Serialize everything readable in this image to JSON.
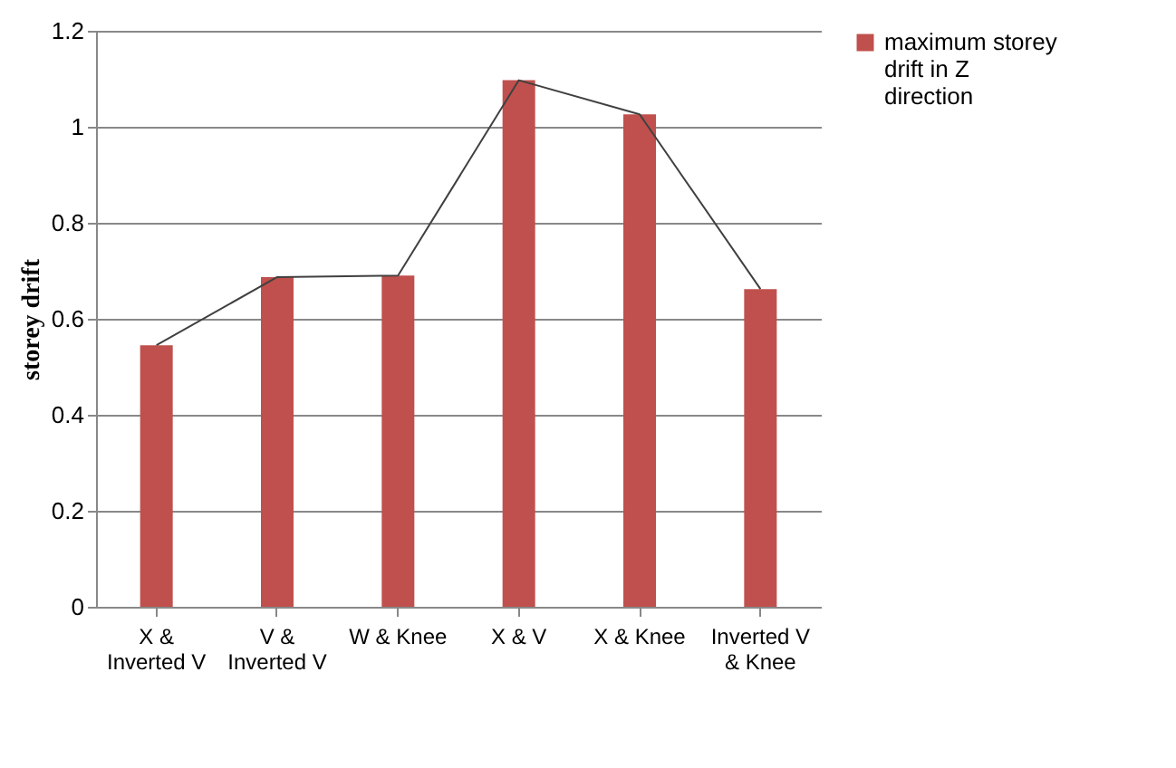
{
  "chart_data": {
    "type": "bar",
    "ylabel": "storey drift",
    "categories": [
      "X & Inverted V",
      "V & Inverted V",
      "W & Knee",
      "X & V",
      "X & Knee",
      "Inverted V & Knee"
    ],
    "series": [
      {
        "name": "maximum storey drift in Z direction",
        "color": "#c0504d",
        "values": [
          0.545,
          0.687,
          0.69,
          1.097,
          1.026,
          0.662
        ]
      },
      {
        "type": "line",
        "color": "#404040",
        "values": [
          0.545,
          0.687,
          0.69,
          1.097,
          1.026,
          0.662
        ]
      }
    ],
    "ylim": [
      0,
      1.2
    ],
    "yticks": [
      0,
      0.2,
      0.4,
      0.6,
      0.8,
      1,
      1.2
    ],
    "grid": "y",
    "legend": "right"
  }
}
